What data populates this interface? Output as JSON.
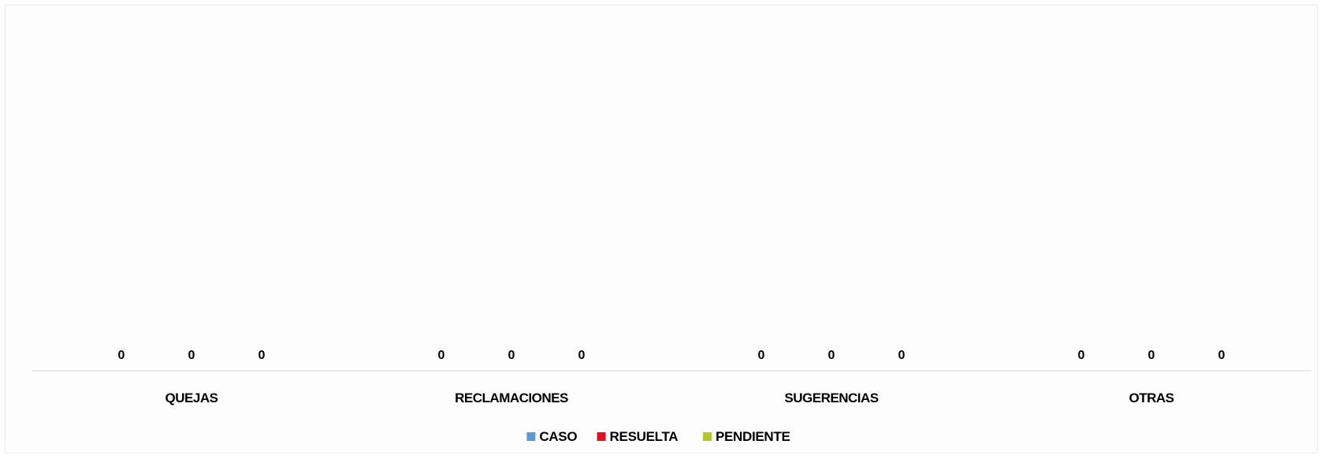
{
  "chart_data": {
    "type": "bar",
    "categories": [
      "QUEJAS",
      "RECLAMACIONES",
      "SUGERENCIAS",
      "OTRAS"
    ],
    "series": [
      {
        "name": "CASO",
        "color": "#5b9bd5",
        "values": [
          0,
          0,
          0,
          0
        ]
      },
      {
        "name": "RESUELTA",
        "color": "#e0101e",
        "values": [
          0,
          0,
          0,
          0
        ]
      },
      {
        "name": "PENDIENTE",
        "color": "#b5c728",
        "values": [
          0,
          0,
          0,
          0
        ]
      }
    ],
    "data_labels": true,
    "legend_position": "bottom",
    "grid": false
  }
}
